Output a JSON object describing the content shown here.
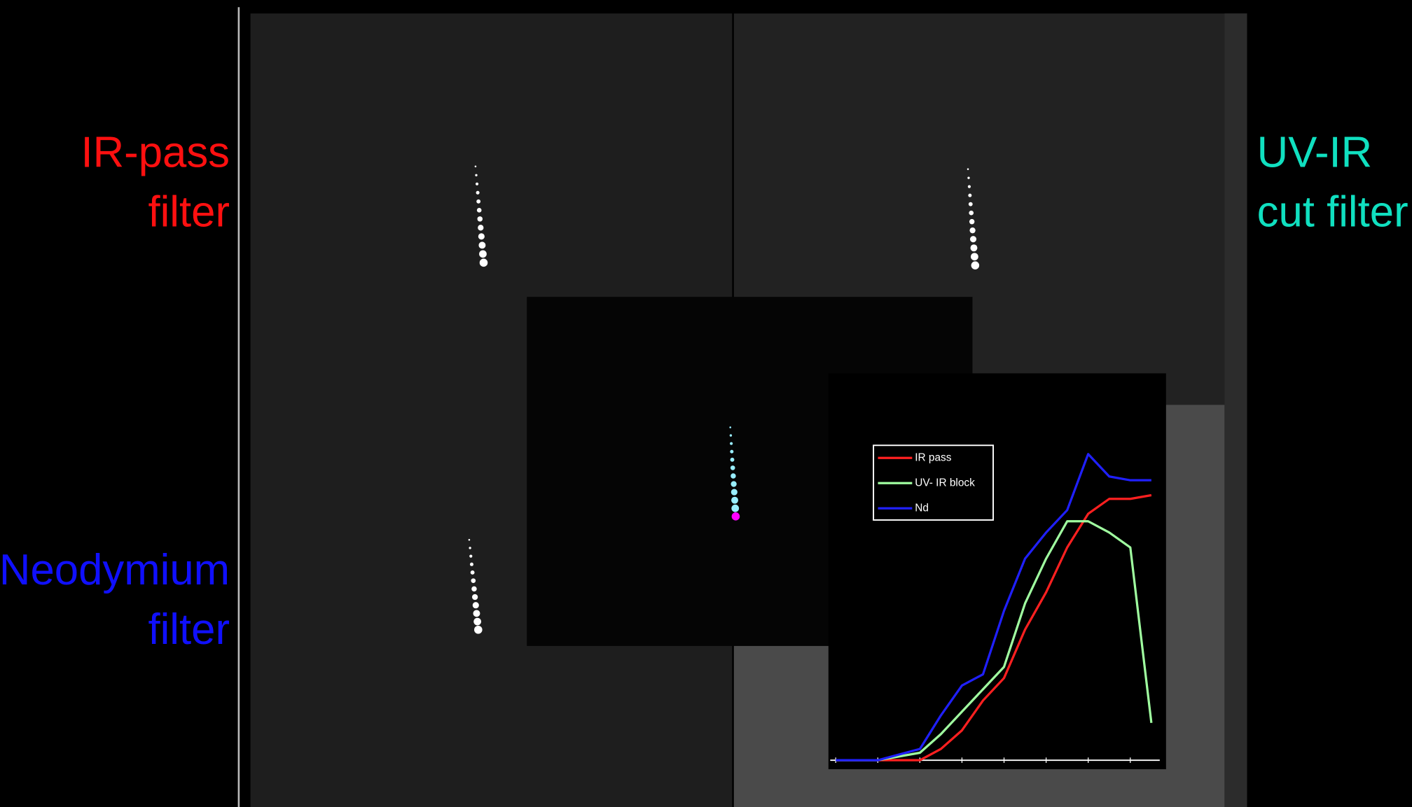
{
  "labels": {
    "ir_pass": [
      "IR-pass",
      "filter"
    ],
    "uv_ir": [
      "UV-IR",
      "cut filter"
    ],
    "neodymium": [
      "Neodymium",
      "filter"
    ]
  },
  "chart_data": {
    "type": "line",
    "x": [
      0,
      1,
      2,
      2.5,
      3,
      3.5,
      4,
      4.5,
      5,
      5.5,
      6,
      6.5,
      7,
      7.5
    ],
    "series": [
      {
        "name": "IR pass",
        "color": "#ff2020",
        "values": [
          0,
          0,
          0,
          3,
          8,
          16,
          22,
          35,
          45,
          57,
          66,
          70,
          70,
          71
        ]
      },
      {
        "name": "UV- IR block",
        "color": "#a0ffa0",
        "values": [
          0,
          0,
          2,
          7,
          13,
          19,
          25,
          42,
          54,
          64,
          64,
          61,
          57,
          10
        ]
      },
      {
        "name": "Nd",
        "color": "#2020ff",
        "values": [
          0,
          0,
          3,
          12,
          20,
          23,
          40,
          54,
          61,
          67,
          82,
          76,
          75,
          75
        ]
      }
    ],
    "xlim": [
      -0.13,
      7.7
    ],
    "ylim": [
      0,
      100
    ],
    "xticks": [
      0,
      1,
      2,
      3,
      4,
      5,
      6,
      7
    ]
  }
}
